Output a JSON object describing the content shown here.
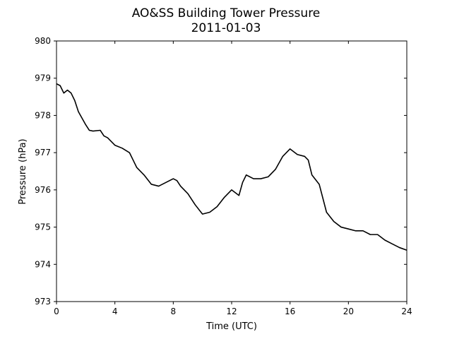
{
  "chart_data": {
    "type": "line",
    "title": "AO&SS Building Tower Pressure",
    "subtitle": "2011-01-03",
    "xlabel": "Time (UTC)",
    "ylabel": "Pressure (hPa)",
    "x": [
      0,
      0.25,
      0.5,
      0.75,
      1,
      1.25,
      1.5,
      2,
      2.25,
      2.5,
      3,
      3.25,
      3.5,
      3.75,
      4,
      4.5,
      5,
      5.25,
      5.5,
      6,
      6.5,
      7,
      7.5,
      8,
      8.25,
      8.5,
      9,
      9.5,
      10,
      10.5,
      11,
      11.5,
      12,
      12.5,
      12.75,
      13,
      13.5,
      14,
      14.5,
      15,
      15.5,
      16,
      16.5,
      17,
      17.25,
      17.5,
      18,
      18.5,
      19,
      19.5,
      20,
      20.5,
      21,
      21.5,
      22,
      22.5,
      23,
      23.5,
      24
    ],
    "series": [
      {
        "name": "Pressure",
        "color": "#000000",
        "values": [
          978.85,
          978.8,
          978.6,
          978.68,
          978.6,
          978.4,
          978.1,
          977.75,
          977.6,
          977.58,
          977.6,
          977.45,
          977.4,
          977.3,
          977.2,
          977.12,
          977.0,
          976.8,
          976.6,
          976.4,
          976.15,
          976.1,
          976.2,
          976.3,
          976.25,
          976.1,
          975.9,
          975.6,
          975.35,
          975.4,
          975.55,
          975.8,
          976.0,
          975.85,
          976.2,
          976.4,
          976.3,
          976.3,
          976.35,
          976.55,
          976.9,
          977.1,
          976.95,
          976.9,
          976.8,
          976.4,
          976.15,
          975.4,
          975.15,
          975.0,
          974.95,
          974.9,
          974.9,
          974.8,
          974.8,
          974.65,
          974.55,
          974.45,
          974.38
        ]
      }
    ],
    "xlim": [
      0,
      24
    ],
    "xticks": [
      0,
      4,
      8,
      12,
      16,
      20,
      24
    ],
    "ylim": [
      973,
      980
    ],
    "yticks": [
      973,
      974,
      975,
      976,
      977,
      978,
      979,
      980
    ]
  }
}
